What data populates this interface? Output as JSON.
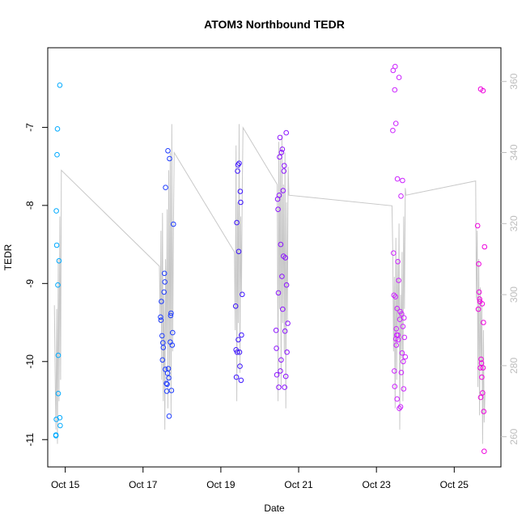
{
  "chart_data": {
    "type": "scatter",
    "title": "ATOM3 Northbound TEDR",
    "xlabel": "Date",
    "ylabel": "TEDR",
    "x_ticks": [
      "Oct 15",
      "Oct 17",
      "Oct 19",
      "Oct 21",
      "Oct 23",
      "Oct 25"
    ],
    "x_tick_days": [
      15,
      17,
      19,
      21,
      23,
      25
    ],
    "xlim": [
      14.55,
      26.2
    ],
    "ylim": [
      -11.35,
      -5.98
    ],
    "y_ticks": [
      -7,
      -8,
      -9,
      -10,
      -11
    ],
    "y2_ticks": [
      260,
      280,
      300,
      320,
      340,
      360
    ],
    "y2lim": [
      251.5,
      369.5
    ],
    "grid": false,
    "point_colors": [
      "#00aaff",
      "#1e3cff",
      "#3c14ff",
      "#8c14ff",
      "#cc22ff",
      "#ee00dd"
    ],
    "line_color": "#c8c8c8",
    "series": [
      {
        "color": "#00aaff",
        "points": [
          [
            14.76,
            -10.94
          ],
          [
            14.76,
            -10.95
          ],
          [
            14.77,
            -10.74
          ],
          [
            14.77,
            -8.07
          ],
          [
            14.78,
            -8.51
          ],
          [
            14.79,
            -7.35
          ],
          [
            14.8,
            -7.02
          ],
          [
            14.81,
            -9.02
          ],
          [
            14.82,
            -10.41
          ],
          [
            14.82,
            -9.92
          ],
          [
            14.84,
            -8.71
          ],
          [
            14.86,
            -10.72
          ],
          [
            14.87,
            -10.82
          ],
          [
            14.86,
            -6.46
          ]
        ]
      },
      {
        "color": "#1e3cff",
        "points": [
          [
            17.45,
            -9.43
          ],
          [
            17.46,
            -9.47
          ],
          [
            17.47,
            -9.23
          ],
          [
            17.49,
            -9.67
          ],
          [
            17.5,
            -9.98
          ],
          [
            17.51,
            -9.76
          ],
          [
            17.52,
            -9.82
          ],
          [
            17.54,
            -9.11
          ],
          [
            17.55,
            -8.87
          ],
          [
            17.56,
            -8.98
          ],
          [
            17.57,
            -10.1
          ],
          [
            17.58,
            -7.77
          ],
          [
            17.6,
            -10.28
          ],
          [
            17.61,
            -10.38
          ],
          [
            17.62,
            -10.29
          ],
          [
            17.63,
            -10.15
          ],
          [
            17.64,
            -7.3
          ],
          [
            17.65,
            -10.09
          ],
          [
            17.66,
            -10.21
          ],
          [
            17.67,
            -10.7
          ],
          [
            17.68,
            -7.4
          ],
          [
            17.7,
            -9.75
          ],
          [
            17.71,
            -9.41
          ],
          [
            17.72,
            -9.38
          ],
          [
            17.73,
            -10.37
          ],
          [
            17.75,
            -9.79
          ],
          [
            17.76,
            -9.63
          ],
          [
            17.78,
            -8.24
          ]
        ]
      },
      {
        "color": "#3c14ff",
        "points": [
          [
            19.38,
            -9.29
          ],
          [
            19.39,
            -9.85
          ],
          [
            19.4,
            -10.2
          ],
          [
            19.41,
            -8.22
          ],
          [
            19.42,
            -9.88
          ],
          [
            19.43,
            -7.56
          ],
          [
            19.44,
            -7.48
          ],
          [
            19.45,
            -9.72
          ],
          [
            19.46,
            -8.59
          ],
          [
            19.47,
            -7.46
          ],
          [
            19.48,
            -9.88
          ],
          [
            19.49,
            -10.06
          ],
          [
            19.5,
            -7.82
          ],
          [
            19.51,
            -7.96
          ],
          [
            19.52,
            -10.24
          ],
          [
            19.53,
            -9.66
          ],
          [
            19.55,
            -9.14
          ]
        ]
      },
      {
        "color": "#8c14ff",
        "points": [
          [
            20.42,
            -9.6
          ],
          [
            20.43,
            -9.83
          ],
          [
            20.44,
            -10.17
          ],
          [
            20.46,
            -7.92
          ],
          [
            20.47,
            -8.05
          ],
          [
            20.48,
            -9.12
          ],
          [
            20.49,
            -10.33
          ],
          [
            20.5,
            -7.87
          ],
          [
            20.51,
            -7.38
          ],
          [
            20.52,
            -7.13
          ],
          [
            20.53,
            -10.12
          ],
          [
            20.54,
            -8.5
          ],
          [
            20.55,
            -9.98
          ],
          [
            20.56,
            -7.32
          ],
          [
            20.57,
            -8.91
          ],
          [
            20.58,
            -7.28
          ],
          [
            20.59,
            -9.33
          ],
          [
            20.6,
            -7.81
          ],
          [
            20.61,
            -8.65
          ],
          [
            20.62,
            -7.56
          ],
          [
            20.63,
            -7.49
          ],
          [
            20.64,
            -10.33
          ],
          [
            20.65,
            -9.61
          ],
          [
            20.66,
            -8.67
          ],
          [
            20.67,
            -10.19
          ],
          [
            20.68,
            -7.07
          ],
          [
            20.69,
            -9.02
          ],
          [
            20.7,
            -9.88
          ],
          [
            20.72,
            -9.51
          ]
        ]
      },
      {
        "color": "#cc22ff",
        "points": [
          [
            23.42,
            -7.04
          ],
          [
            23.43,
            -6.27
          ],
          [
            23.44,
            -8.61
          ],
          [
            23.45,
            -9.15
          ],
          [
            23.46,
            -10.12
          ],
          [
            23.47,
            -10.32
          ],
          [
            23.47,
            -6.52
          ],
          [
            23.48,
            -6.22
          ],
          [
            23.49,
            -9.17
          ],
          [
            23.5,
            -6.95
          ],
          [
            23.5,
            -9.71
          ],
          [
            23.51,
            -9.58
          ],
          [
            23.51,
            -9.79
          ],
          [
            23.52,
            -9.66
          ],
          [
            23.53,
            -9.32
          ],
          [
            23.53,
            -10.48
          ],
          [
            23.54,
            -7.66
          ],
          [
            23.55,
            -8.72
          ],
          [
            23.55,
            -9.66
          ],
          [
            23.56,
            -9.72
          ],
          [
            23.57,
            -8.96
          ],
          [
            23.58,
            -6.36
          ],
          [
            23.59,
            -10.6
          ],
          [
            23.6,
            -9.46
          ],
          [
            23.61,
            -9.36
          ],
          [
            23.62,
            -10.58
          ],
          [
            23.63,
            -7.88
          ],
          [
            23.64,
            -10.14
          ],
          [
            23.65,
            -9.39
          ],
          [
            23.66,
            -9.89
          ],
          [
            23.67,
            -7.68
          ],
          [
            23.68,
            -9.55
          ],
          [
            23.69,
            -10.0
          ],
          [
            23.7,
            -10.35
          ],
          [
            23.71,
            -9.44
          ],
          [
            23.72,
            -9.69
          ],
          [
            23.74,
            -9.94
          ]
        ]
      },
      {
        "color": "#ee00dd",
        "points": [
          [
            25.6,
            -8.26
          ],
          [
            25.62,
            -9.33
          ],
          [
            25.63,
            -8.75
          ],
          [
            25.64,
            -9.11
          ],
          [
            25.65,
            -9.2
          ],
          [
            25.66,
            -9.23
          ],
          [
            25.67,
            -10.08
          ],
          [
            25.68,
            -10.46
          ],
          [
            25.69,
            -9.97
          ],
          [
            25.7,
            -10.02
          ],
          [
            25.71,
            -10.2
          ],
          [
            25.72,
            -9.26
          ],
          [
            25.73,
            -10.4
          ],
          [
            25.74,
            -10.08
          ],
          [
            25.75,
            -9.5
          ],
          [
            25.76,
            -10.64
          ],
          [
            25.77,
            -11.15
          ],
          [
            25.78,
            -8.53
          ],
          [
            25.68,
            -6.51
          ],
          [
            25.74,
            -6.53
          ]
        ]
      }
    ],
    "secondary_line": {
      "axis": "right",
      "x": [
        14.72,
        14.74,
        14.76,
        14.78,
        14.8,
        14.82,
        14.84,
        14.86,
        14.88,
        14.9,
        17.42,
        17.44,
        17.46,
        17.48,
        17.5,
        17.52,
        17.54,
        17.56,
        17.58,
        17.6,
        17.62,
        17.64,
        17.66,
        17.68,
        17.7,
        17.72,
        17.74,
        17.76,
        17.78,
        17.8,
        19.35,
        19.37,
        19.39,
        19.41,
        19.43,
        19.45,
        19.47,
        19.49,
        19.51,
        19.53,
        19.55,
        19.57,
        20.45,
        20.47,
        20.49,
        20.51,
        20.53,
        20.55,
        20.57,
        20.59,
        20.61,
        20.63,
        20.65,
        20.67,
        20.69,
        20.71,
        20.73,
        20.75,
        23.4,
        23.42,
        23.44,
        23.46,
        23.48,
        23.5,
        23.52,
        23.54,
        23.56,
        23.58,
        23.6,
        23.62,
        23.64,
        23.66,
        23.68,
        23.7,
        23.72,
        23.74,
        23.76,
        25.55,
        25.57,
        25.59,
        25.61,
        25.63,
        25.65,
        25.67,
        25.69,
        25.71,
        25.73,
        25.75,
        25.77,
        25.79
      ],
      "y": [
        297,
        278,
        262,
        296,
        258,
        310,
        270,
        322,
        276,
        335,
        308,
        292,
        318,
        276,
        323,
        270,
        300,
        262,
        310,
        286,
        324,
        268,
        335,
        276,
        340,
        266,
        348,
        284,
        318,
        340,
        312,
        290,
        342,
        270,
        326,
        292,
        348,
        278,
        322,
        300,
        328,
        347,
        331,
        270,
        343,
        296,
        338,
        274,
        345,
        292,
        331,
        284,
        340,
        268,
        326,
        292,
        336,
        328,
        325,
        312,
        284,
        305,
        268,
        316,
        276,
        310,
        288,
        320,
        262,
        300,
        282,
        312,
        270,
        322,
        296,
        330,
        328,
        332,
        299,
        318,
        274,
        310,
        266,
        302,
        280,
        298,
        258,
        290,
        264,
        272
      ]
    }
  }
}
